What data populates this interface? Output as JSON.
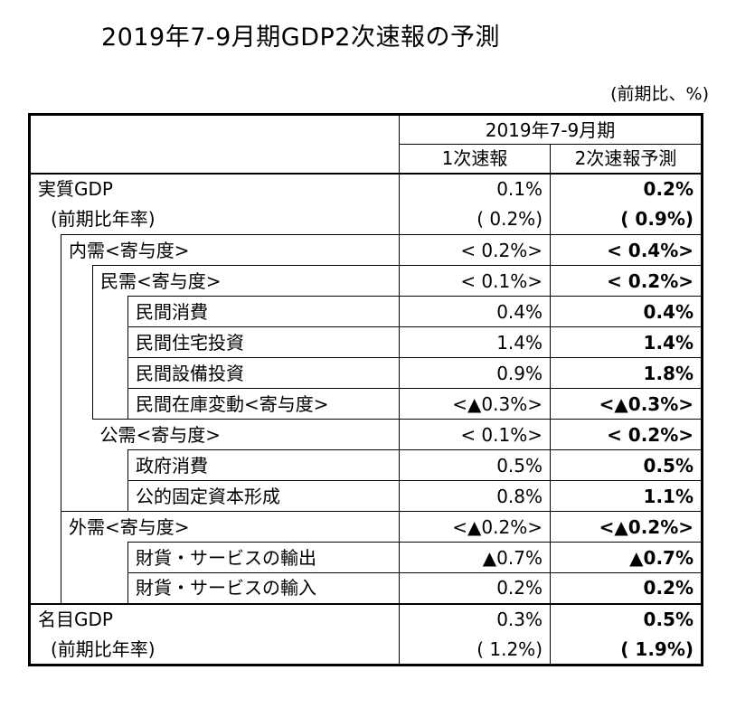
{
  "title": "2019年7-9月期GDP2次速報の予測",
  "unit": "(前期比、%)",
  "header": {
    "period": "2019年7-9月期",
    "col1": "1次速報",
    "col2": "2次速報予測"
  },
  "rows": [
    {
      "label": "実質GDP",
      "v1": "0.1%",
      "v2": "0.2%"
    },
    {
      "label": "(前期比年率)",
      "v1": "( 0.2%)",
      "v2": "( 0.9%)"
    },
    {
      "label": "内需<寄与度>",
      "v1": "< 0.2%>",
      "v2": "< 0.4%>"
    },
    {
      "label": "民需<寄与度>",
      "v1": "< 0.1%>",
      "v2": "< 0.2%>"
    },
    {
      "label": "民間消費",
      "v1": "0.4%",
      "v2": "0.4%"
    },
    {
      "label": "民間住宅投資",
      "v1": "1.4%",
      "v2": "1.4%"
    },
    {
      "label": "民間設備投資",
      "v1": "0.9%",
      "v2": "1.8%"
    },
    {
      "label": "民間在庫変動<寄与度>",
      "v1": "<▲0.3%>",
      "v2": "<▲0.3%>"
    },
    {
      "label": "公需<寄与度>",
      "v1": "< 0.1%>",
      "v2": "< 0.2%>"
    },
    {
      "label": "政府消費",
      "v1": "0.5%",
      "v2": "0.5%"
    },
    {
      "label": "公的固定資本形成",
      "v1": "0.8%",
      "v2": "1.1%"
    },
    {
      "label": "外需<寄与度>",
      "v1": "<▲0.2%>",
      "v2": "<▲0.2%>"
    },
    {
      "label": "財貨・サービスの輸出",
      "v1": "▲0.7%",
      "v2": "▲0.7%"
    },
    {
      "label": "財貨・サービスの輸入",
      "v1": "0.2%",
      "v2": "0.2%"
    },
    {
      "label": "名目GDP",
      "v1": "0.3%",
      "v2": "0.5%"
    },
    {
      "label": "(前期比年率)",
      "v1": "( 1.2%)",
      "v2": "( 1.9%)"
    }
  ]
}
